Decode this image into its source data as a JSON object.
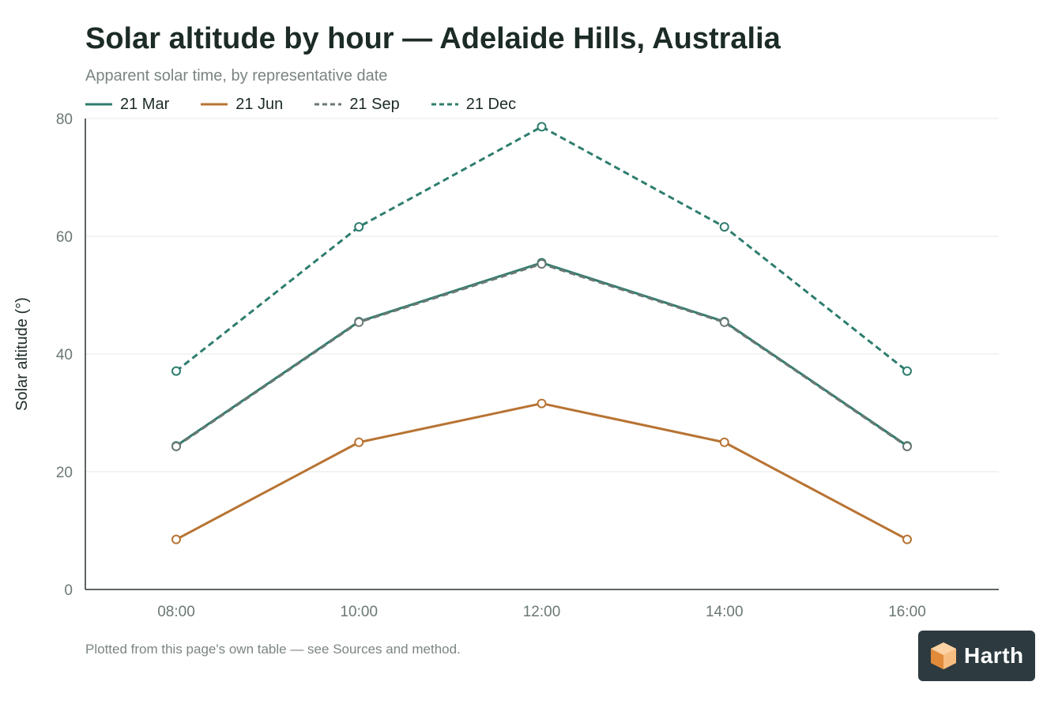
{
  "header": {
    "title": "Solar altitude by hour — Adelaide Hills, Australia",
    "subtitle": "Apparent solar time, by representative date"
  },
  "footer": {
    "note": "Plotted from this page's own table — see Sources and method."
  },
  "brand": {
    "name": "Harth",
    "icon": "cube-icon",
    "icon_color": "#f0a45c",
    "background": "#2d3a3f"
  },
  "chart_data": {
    "type": "line",
    "title": "Solar altitude by hour — Adelaide Hills, Australia",
    "subtitle": "Apparent solar time, by representative date",
    "xlabel": "",
    "ylabel": "Solar altitude (°)",
    "x": [
      "08:00",
      "10:00",
      "12:00",
      "14:00",
      "16:00"
    ],
    "ylim": [
      0,
      80
    ],
    "yticks": [
      "0",
      "20",
      "40",
      "60",
      "80"
    ],
    "grid": true,
    "legend_position": "top-left",
    "series": [
      {
        "name": "21 Mar",
        "values": [
          24.4,
          45.5,
          55.5,
          45.5,
          24.4
        ],
        "color": "#2e7d6e",
        "dash": "solid"
      },
      {
        "name": "21 Jun",
        "values": [
          8.5,
          25.0,
          31.6,
          25.0,
          8.5
        ],
        "color": "#b87333",
        "dash": "solid"
      },
      {
        "name": "21 Sep",
        "values": [
          24.3,
          45.4,
          55.3,
          45.4,
          24.3
        ],
        "color": "#6b7874",
        "dash": "dashed"
      },
      {
        "name": "21 Dec",
        "values": [
          37.1,
          61.6,
          78.6,
          61.6,
          37.1
        ],
        "color": "#2e7d6e",
        "dash": "dashed"
      }
    ]
  }
}
